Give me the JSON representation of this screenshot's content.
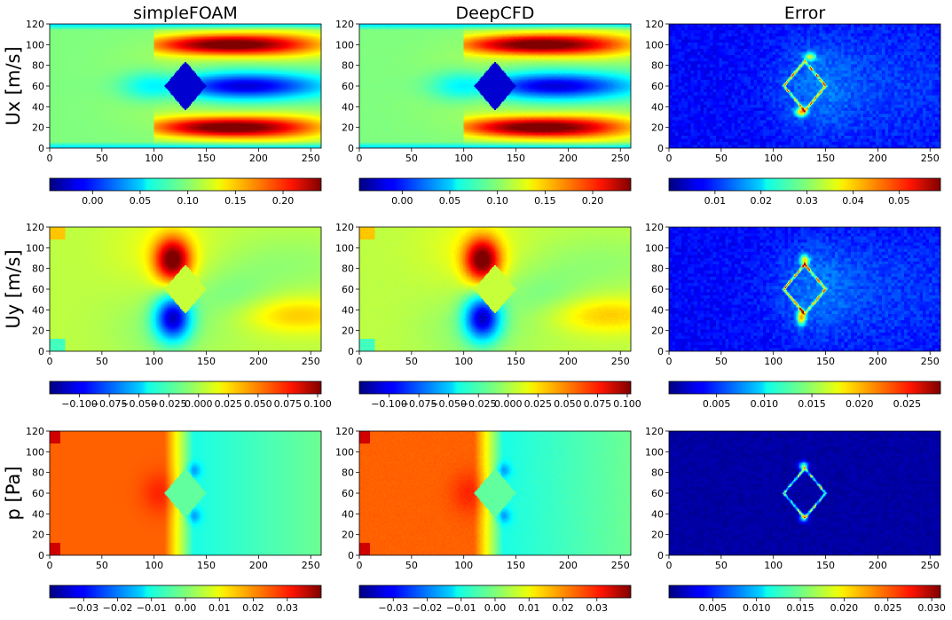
{
  "chart_data": {
    "type": "heatmap",
    "columns": [
      "simpleFOAM",
      "DeepCFD",
      "Error"
    ],
    "rows": [
      "Ux [m/s]",
      "Uy [m/s]",
      "p [Pa]"
    ],
    "x_axis": {
      "range": [
        0,
        260
      ],
      "ticks": [
        0,
        50,
        100,
        150,
        200,
        250
      ]
    },
    "y_axis": {
      "range": [
        0,
        120
      ],
      "ticks": [
        0,
        20,
        40,
        60,
        80,
        100,
        120
      ]
    },
    "obstacle": {
      "shape": "diamond",
      "center": [
        130,
        60
      ],
      "half_width": 20,
      "half_height": 24
    },
    "colormap": "jet",
    "colorbars": [
      [
        {
          "range": [
            -0.045,
            0.24
          ],
          "ticks": [
            "0.00",
            "0.05",
            "0.10",
            "0.15",
            "0.20"
          ],
          "tick_values": [
            0,
            0.05,
            0.1,
            0.15,
            0.2
          ]
        },
        {
          "range": [
            -0.045,
            0.24
          ],
          "ticks": [
            "0.00",
            "0.05",
            "0.10",
            "0.15",
            "0.20"
          ],
          "tick_values": [
            0,
            0.05,
            0.1,
            0.15,
            0.2
          ]
        },
        {
          "range": [
            0.0,
            0.059
          ],
          "ticks": [
            "0.01",
            "0.02",
            "0.03",
            "0.04",
            "0.05"
          ],
          "tick_values": [
            0.01,
            0.02,
            0.03,
            0.04,
            0.05
          ]
        }
      ],
      [
        {
          "range": [
            -0.125,
            0.103
          ],
          "ticks": [
            "−0.100",
            "−0.075",
            "−0.050",
            "−0.025",
            "0.000",
            "0.025",
            "0.050",
            "0.075",
            "0.100"
          ],
          "tick_values": [
            -0.1,
            -0.075,
            -0.05,
            -0.025,
            0,
            0.025,
            0.05,
            0.075,
            0.1
          ]
        },
        {
          "range": [
            -0.125,
            0.103
          ],
          "ticks": [
            "−0.100",
            "−0.075",
            "−0.050",
            "−0.025",
            "0.000",
            "0.025",
            "0.050",
            "0.075",
            "0.100"
          ],
          "tick_values": [
            -0.1,
            -0.075,
            -0.05,
            -0.025,
            0,
            0.025,
            0.05,
            0.075,
            0.1
          ]
        },
        {
          "range": [
            0.0,
            0.0285
          ],
          "ticks": [
            "0.005",
            "0.010",
            "0.015",
            "0.020",
            "0.025"
          ],
          "tick_values": [
            0.005,
            0.01,
            0.015,
            0.02,
            0.025
          ]
        }
      ],
      [
        {
          "range": [
            -0.04,
            0.04
          ],
          "ticks": [
            "−0.03",
            "−0.02",
            "−0.01",
            "0.00",
            "0.01",
            "0.02",
            "0.03"
          ],
          "tick_values": [
            -0.03,
            -0.02,
            -0.01,
            0,
            0.01,
            0.02,
            0.03
          ]
        },
        {
          "range": [
            -0.04,
            0.04
          ],
          "ticks": [
            "−0.03",
            "−0.02",
            "−0.01",
            "0.00",
            "0.01",
            "0.02",
            "0.03"
          ],
          "tick_values": [
            -0.03,
            -0.02,
            -0.01,
            0,
            0.01,
            0.02,
            0.03
          ]
        },
        {
          "range": [
            0.0,
            0.031
          ],
          "ticks": [
            "0.005",
            "0.010",
            "0.015",
            "0.020",
            "0.025",
            "0.030"
          ],
          "tick_values": [
            0.005,
            0.01,
            0.015,
            0.02,
            0.025,
            0.03
          ]
        }
      ]
    ]
  }
}
